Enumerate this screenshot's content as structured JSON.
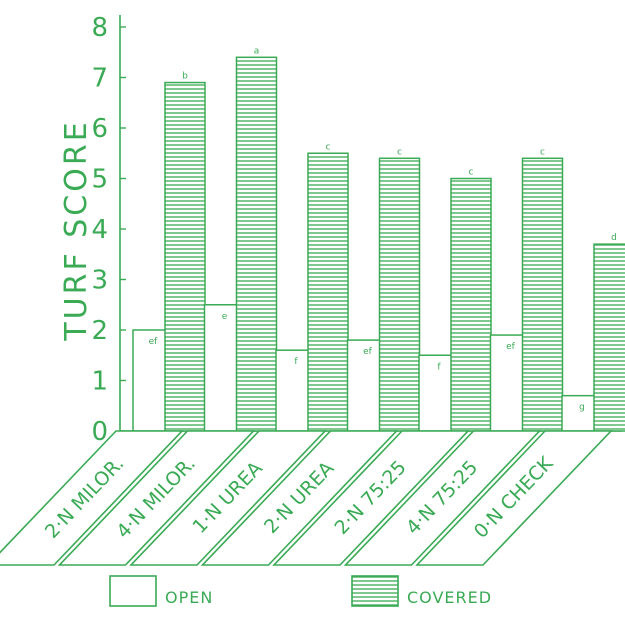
{
  "colors": {
    "accent": "#3aaa55",
    "background": "#ffffff",
    "bar_open_fill": "#ffffff"
  },
  "chart_data": {
    "type": "bar",
    "ylabel": "TURF SCORE",
    "ylim": [
      0,
      8
    ],
    "yticks": [
      "0",
      "1",
      "2",
      "3",
      "4",
      "5",
      "6",
      "7",
      "8"
    ],
    "categories": [
      "2·N MILOR.",
      "4·N MILOR.",
      "1·N UREA",
      "2·N UREA",
      "2·N 75:25",
      "4·N 75:25",
      "0·N CHECK"
    ],
    "series": [
      {
        "name": "OPEN",
        "values": [
          2.0,
          2.5,
          1.6,
          1.8,
          1.5,
          1.9,
          0.7
        ],
        "labels": [
          "ef",
          "e",
          "f",
          "ef",
          "f",
          "ef",
          "g"
        ]
      },
      {
        "name": "COVERED",
        "values": [
          6.9,
          7.4,
          5.5,
          5.4,
          5.0,
          5.4,
          3.7
        ],
        "labels": [
          "b",
          "a",
          "c",
          "c",
          "c",
          "c",
          "d"
        ]
      }
    ],
    "legend": {
      "position": "bottom",
      "entries": [
        "OPEN",
        "COVERED"
      ]
    },
    "grid": false
  }
}
